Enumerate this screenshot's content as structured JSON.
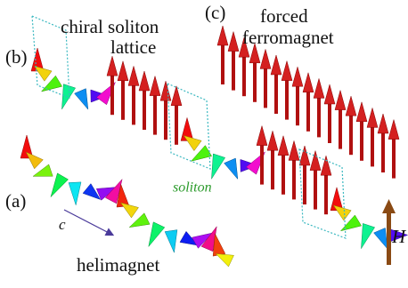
{
  "labels": {
    "a": "(a)",
    "helimagnet": "helimagnet",
    "b": "(b)",
    "chiral": "chiral soliton",
    "lattice": "lattice",
    "c": "(c)",
    "forced": "forced",
    "ferromagnet": "ferromagnet",
    "soliton": "soliton",
    "axis_c": "c",
    "field": "H"
  }
}
